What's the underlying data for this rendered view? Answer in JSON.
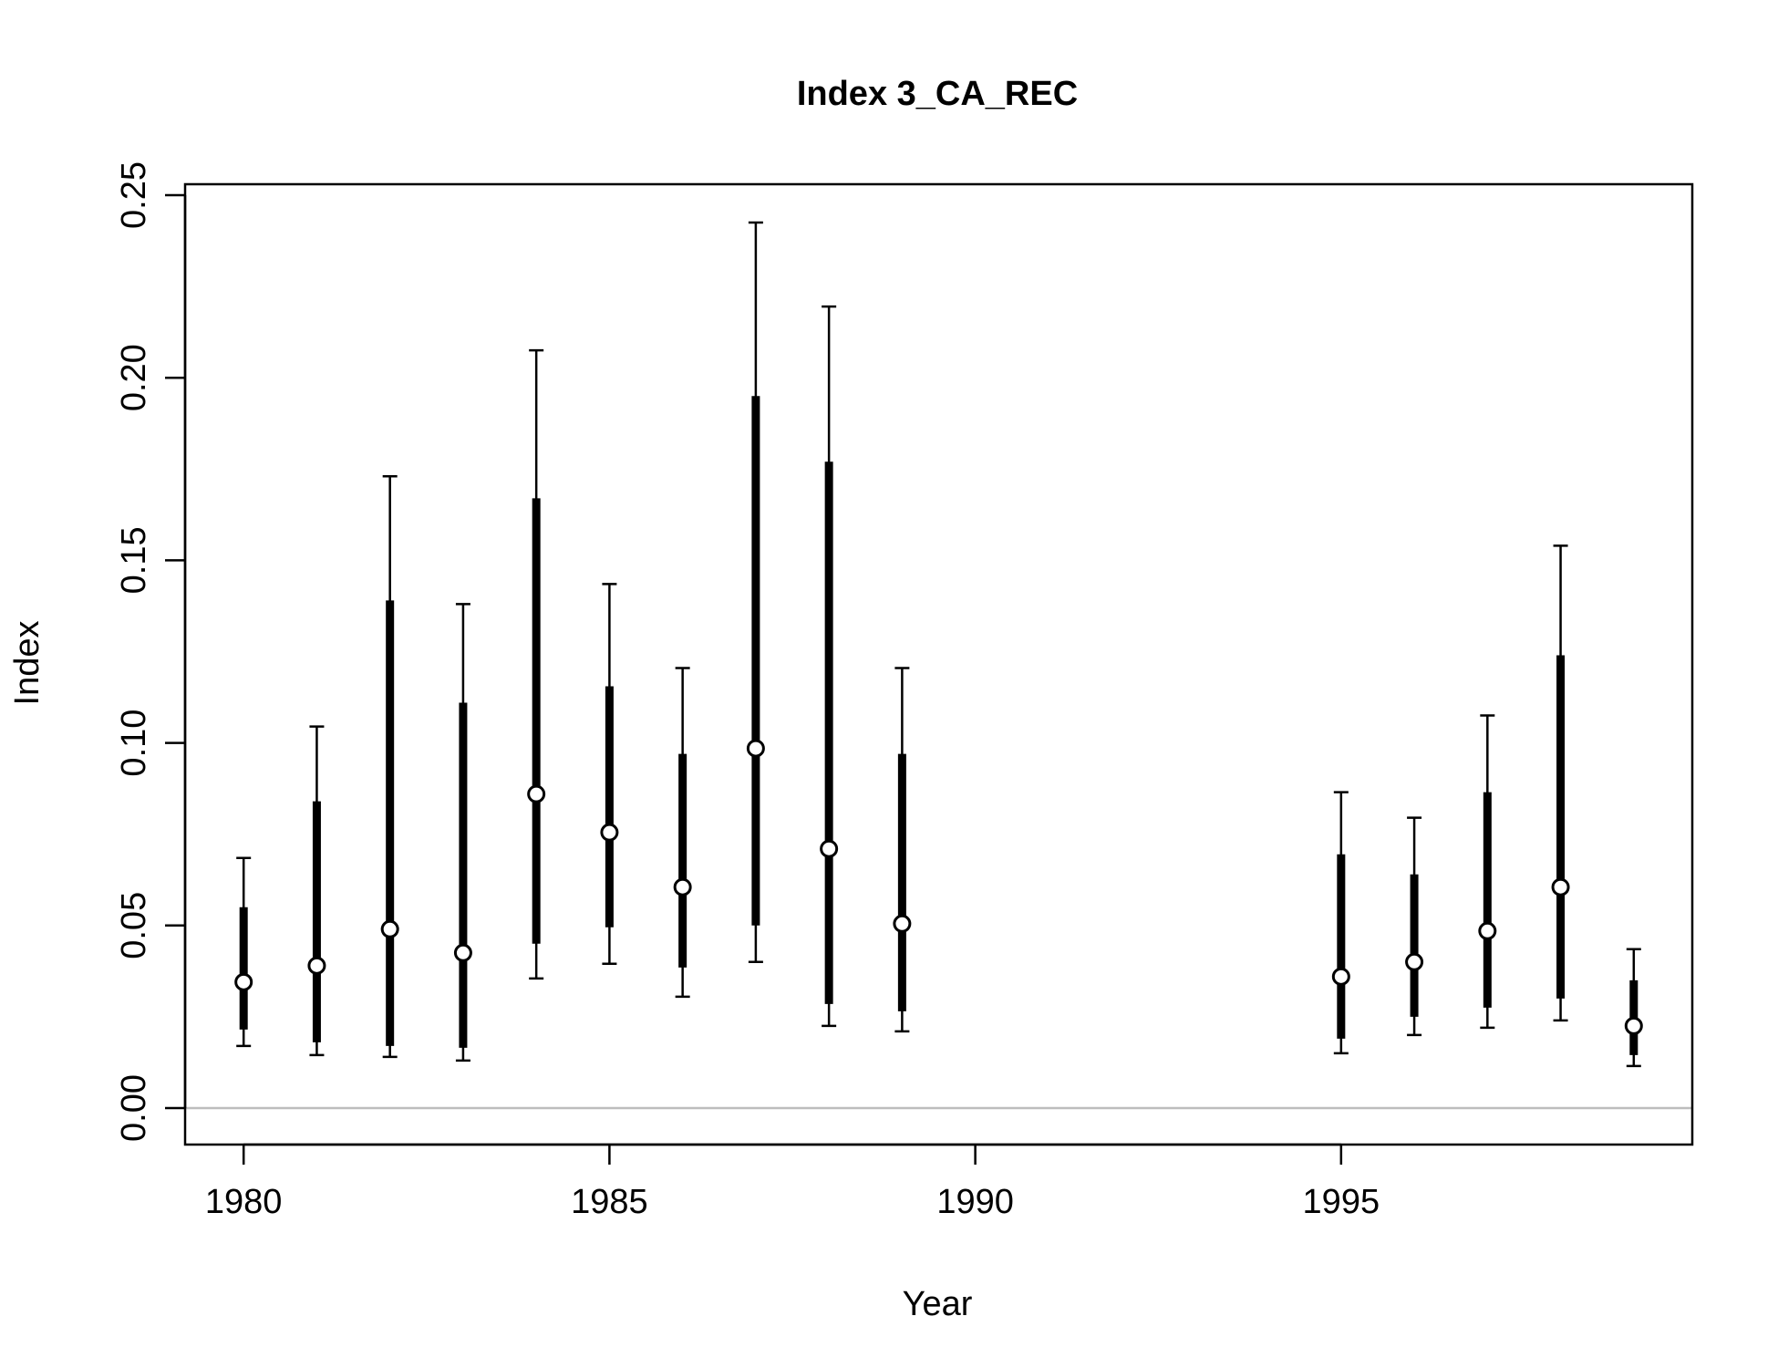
{
  "chart_data": {
    "type": "errorbar",
    "title": "Index 3_CA_REC",
    "xlabel": "Year",
    "ylabel": "Index",
    "xlim": [
      1979.2,
      1999.8
    ],
    "ylim": [
      -0.01,
      0.253
    ],
    "x_ticks": [
      1980,
      1985,
      1990,
      1995
    ],
    "x_tick_labels": [
      "1980",
      "1985",
      "1990",
      "1995"
    ],
    "y_ticks": [
      0,
      0.05,
      0.1,
      0.15,
      0.2,
      0.25
    ],
    "y_tick_labels": [
      "0.00",
      "0.05",
      "0.10",
      "0.15",
      "0.20",
      "0.25"
    ],
    "reference_line": {
      "y": 0,
      "color": "#bdbdbd"
    },
    "grid": false,
    "series": [
      {
        "points": [
          {
            "x": 1980,
            "y": 0.0345,
            "inner_lo": 0.0215,
            "inner_hi": 0.055,
            "outer_lo": 0.017,
            "outer_hi": 0.0685
          },
          {
            "x": 1981,
            "y": 0.039,
            "inner_lo": 0.018,
            "inner_hi": 0.084,
            "outer_lo": 0.0145,
            "outer_hi": 0.1045
          },
          {
            "x": 1982,
            "y": 0.049,
            "inner_lo": 0.017,
            "inner_hi": 0.139,
            "outer_lo": 0.014,
            "outer_hi": 0.173
          },
          {
            "x": 1983,
            "y": 0.0425,
            "inner_lo": 0.0165,
            "inner_hi": 0.111,
            "outer_lo": 0.013,
            "outer_hi": 0.138
          },
          {
            "x": 1984,
            "y": 0.086,
            "inner_lo": 0.045,
            "inner_hi": 0.167,
            "outer_lo": 0.0355,
            "outer_hi": 0.2075
          },
          {
            "x": 1985,
            "y": 0.0755,
            "inner_lo": 0.0495,
            "inner_hi": 0.1155,
            "outer_lo": 0.0395,
            "outer_hi": 0.1435
          },
          {
            "x": 1986,
            "y": 0.0605,
            "inner_lo": 0.0385,
            "inner_hi": 0.097,
            "outer_lo": 0.0305,
            "outer_hi": 0.1205
          },
          {
            "x": 1987,
            "y": 0.0985,
            "inner_lo": 0.05,
            "inner_hi": 0.195,
            "outer_lo": 0.04,
            "outer_hi": 0.2425
          },
          {
            "x": 1988,
            "y": 0.071,
            "inner_lo": 0.0285,
            "inner_hi": 0.177,
            "outer_lo": 0.0225,
            "outer_hi": 0.2195
          },
          {
            "x": 1989,
            "y": 0.0505,
            "inner_lo": 0.0265,
            "inner_hi": 0.097,
            "outer_lo": 0.021,
            "outer_hi": 0.1205
          },
          {
            "x": 1995,
            "y": 0.036,
            "inner_lo": 0.019,
            "inner_hi": 0.0695,
            "outer_lo": 0.015,
            "outer_hi": 0.0865
          },
          {
            "x": 1996,
            "y": 0.04,
            "inner_lo": 0.025,
            "inner_hi": 0.064,
            "outer_lo": 0.02,
            "outer_hi": 0.0795
          },
          {
            "x": 1997,
            "y": 0.0485,
            "inner_lo": 0.0275,
            "inner_hi": 0.0865,
            "outer_lo": 0.022,
            "outer_hi": 0.1075
          },
          {
            "x": 1998,
            "y": 0.0605,
            "inner_lo": 0.03,
            "inner_hi": 0.124,
            "outer_lo": 0.024,
            "outer_hi": 0.154
          },
          {
            "x": 1999,
            "y": 0.0225,
            "inner_lo": 0.0145,
            "inner_hi": 0.035,
            "outer_lo": 0.0115,
            "outer_hi": 0.0435
          }
        ]
      }
    ]
  }
}
